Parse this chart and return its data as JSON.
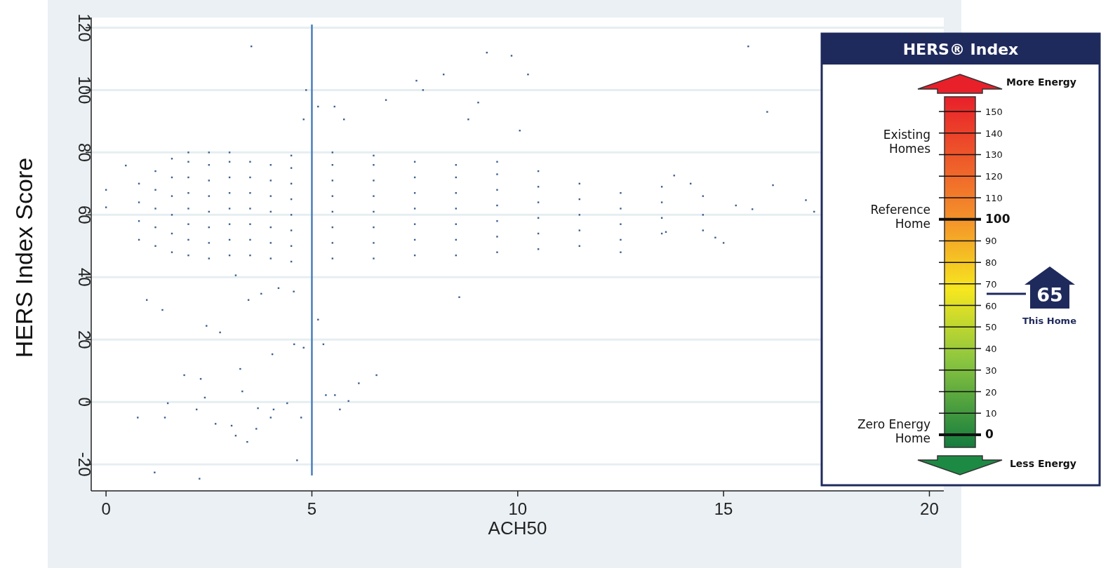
{
  "chart_data": {
    "type": "scatter",
    "xlabel": "ACH50",
    "ylabel": "HERS Index Score",
    "xlim": [
      -0.36,
      20.35
    ],
    "ylim": [
      -28.5,
      121
    ],
    "xticks": [
      0,
      5,
      10,
      15,
      20
    ],
    "yticks": [
      -20,
      0,
      20,
      40,
      60,
      80,
      100,
      120
    ],
    "grid": "y",
    "marker": "square",
    "series": [
      {
        "color": "#3b5f8e",
        "x": [
          0.8,
          0.8,
          0.8,
          0.8,
          1.2,
          1.2,
          1.2,
          1.2,
          1.2,
          1.6,
          1.6,
          1.6,
          1.6,
          1.6,
          1.6,
          2.0,
          2.0,
          2.0,
          2.0,
          2.0,
          2.0,
          2.0,
          2.0,
          2.5,
          2.5,
          2.5,
          2.5,
          2.5,
          2.5,
          2.5,
          2.5,
          3.0,
          3.0,
          3.0,
          3.0,
          3.0,
          3.0,
          3.0,
          3.0,
          3.5,
          3.5,
          3.5,
          3.5,
          3.5,
          3.5,
          3.5,
          4.0,
          4.0,
          4.0,
          4.0,
          4.0,
          4.0,
          4.0,
          4.5,
          4.5,
          4.5,
          4.5,
          4.5,
          4.5,
          4.5,
          4.5,
          5.5,
          5.5,
          5.5,
          5.5,
          5.5,
          5.5,
          5.5,
          5.5,
          6.5,
          6.5,
          6.5,
          6.5,
          6.5,
          6.5,
          6.5,
          6.5,
          7.5,
          7.5,
          7.5,
          7.5,
          7.5,
          7.5,
          7.5,
          8.5,
          8.5,
          8.5,
          8.5,
          8.5,
          8.5,
          8.5,
          9.5,
          9.5,
          9.5,
          9.5,
          9.5,
          9.5,
          9.5,
          10.5,
          10.5,
          10.5,
          10.5,
          10.5,
          10.5,
          11.5,
          11.5,
          11.5,
          11.5,
          11.5,
          12.5,
          12.5,
          12.5,
          12.5,
          13.5,
          13.5,
          13.5,
          13.5,
          14.5,
          14.5,
          14.5,
          1.18,
          2.27,
          4.64,
          0.77,
          1.43,
          1.5,
          1.9,
          2.3,
          2.4,
          2.2,
          2.66,
          3.05,
          3.15,
          3.43,
          3.65,
          3.26,
          3.31,
          3.69,
          4.07,
          4.4,
          4.0,
          4.74,
          4.04,
          4.57,
          4.8,
          5.15,
          5.28,
          5.34,
          5.56,
          5.68,
          5.89,
          6.14,
          6.57,
          0.99,
          1.37,
          2.44,
          2.77,
          3.15,
          3.46,
          3.77,
          4.19,
          4.56,
          8.58,
          0,
          0,
          0.48,
          3.53,
          4.86,
          5.15,
          5.55,
          4.8,
          5.78,
          6.8,
          7.54,
          8.2,
          7.7,
          8.8,
          9.25,
          9.85,
          10.25,
          9.04,
          10.05,
          15.6,
          16.06,
          17.2,
          16.2,
          17.0,
          15.0,
          14.8,
          13.8,
          14.2,
          15.7,
          15.3,
          12.5,
          13.6
        ],
        "values": [
          52,
          58,
          64,
          70,
          50,
          56,
          62,
          68,
          74,
          48,
          54,
          60,
          66,
          72,
          78,
          47,
          52,
          57,
          62,
          67,
          72,
          77,
          80,
          46,
          51,
          56,
          61,
          66,
          71,
          76,
          80,
          47,
          52,
          57,
          62,
          67,
          72,
          77,
          80,
          47,
          52,
          57,
          62,
          67,
          72,
          77,
          46,
          51,
          56,
          61,
          66,
          71,
          76,
          45,
          50,
          55,
          60,
          65,
          70,
          75,
          79,
          46,
          51,
          56,
          61,
          66,
          71,
          76,
          80,
          46,
          51,
          56,
          61,
          66,
          71,
          76,
          79,
          47,
          52,
          57,
          62,
          67,
          72,
          77,
          47,
          52,
          57,
          62,
          67,
          72,
          76,
          48,
          53,
          58,
          63,
          68,
          73,
          77,
          49,
          54,
          59,
          64,
          69,
          74,
          50,
          55,
          60,
          65,
          70,
          52,
          57,
          62,
          67,
          54,
          59,
          64,
          69,
          55,
          60,
          66,
          -22.6,
          -24.6,
          -18.7,
          -5,
          -5,
          -0.4,
          8.6,
          7.4,
          1.4,
          -2.4,
          -7,
          -7.6,
          -10.8,
          -12.8,
          -8.6,
          10.6,
          3.4,
          -2,
          -2.4,
          -0.4,
          -5,
          -5,
          15.3,
          18.5,
          17.4,
          26.4,
          18.5,
          2.2,
          2.2,
          -2.4,
          0.3,
          6,
          8.6,
          32.7,
          29.5,
          24.4,
          22.3,
          40.6,
          32.7,
          34.7,
          36.5,
          35.4,
          33.6,
          68,
          62.4,
          75.8,
          114,
          100,
          94.7,
          94.7,
          90.6,
          90.6,
          96.8,
          103,
          105,
          100,
          90.6,
          112,
          111,
          105,
          96,
          87,
          114,
          93,
          61,
          69.5,
          64.7,
          51,
          52.7,
          72.6,
          70,
          61.8,
          63,
          48,
          54.5
        ]
      }
    ],
    "ref_lines": [
      {
        "axis": "x",
        "value": 5,
        "color": "#4a7ebb"
      }
    ],
    "annotations": [
      "HERS® Index",
      "More Energy",
      "Existing Homes",
      "Reference Home",
      "Zero Energy Home",
      "Less Energy",
      "65",
      "This Home",
      "150",
      "140",
      "130",
      "120",
      "110",
      "100",
      "90",
      "80",
      "70",
      "60",
      "50",
      "40",
      "30",
      "20",
      "10",
      "0"
    ]
  }
}
